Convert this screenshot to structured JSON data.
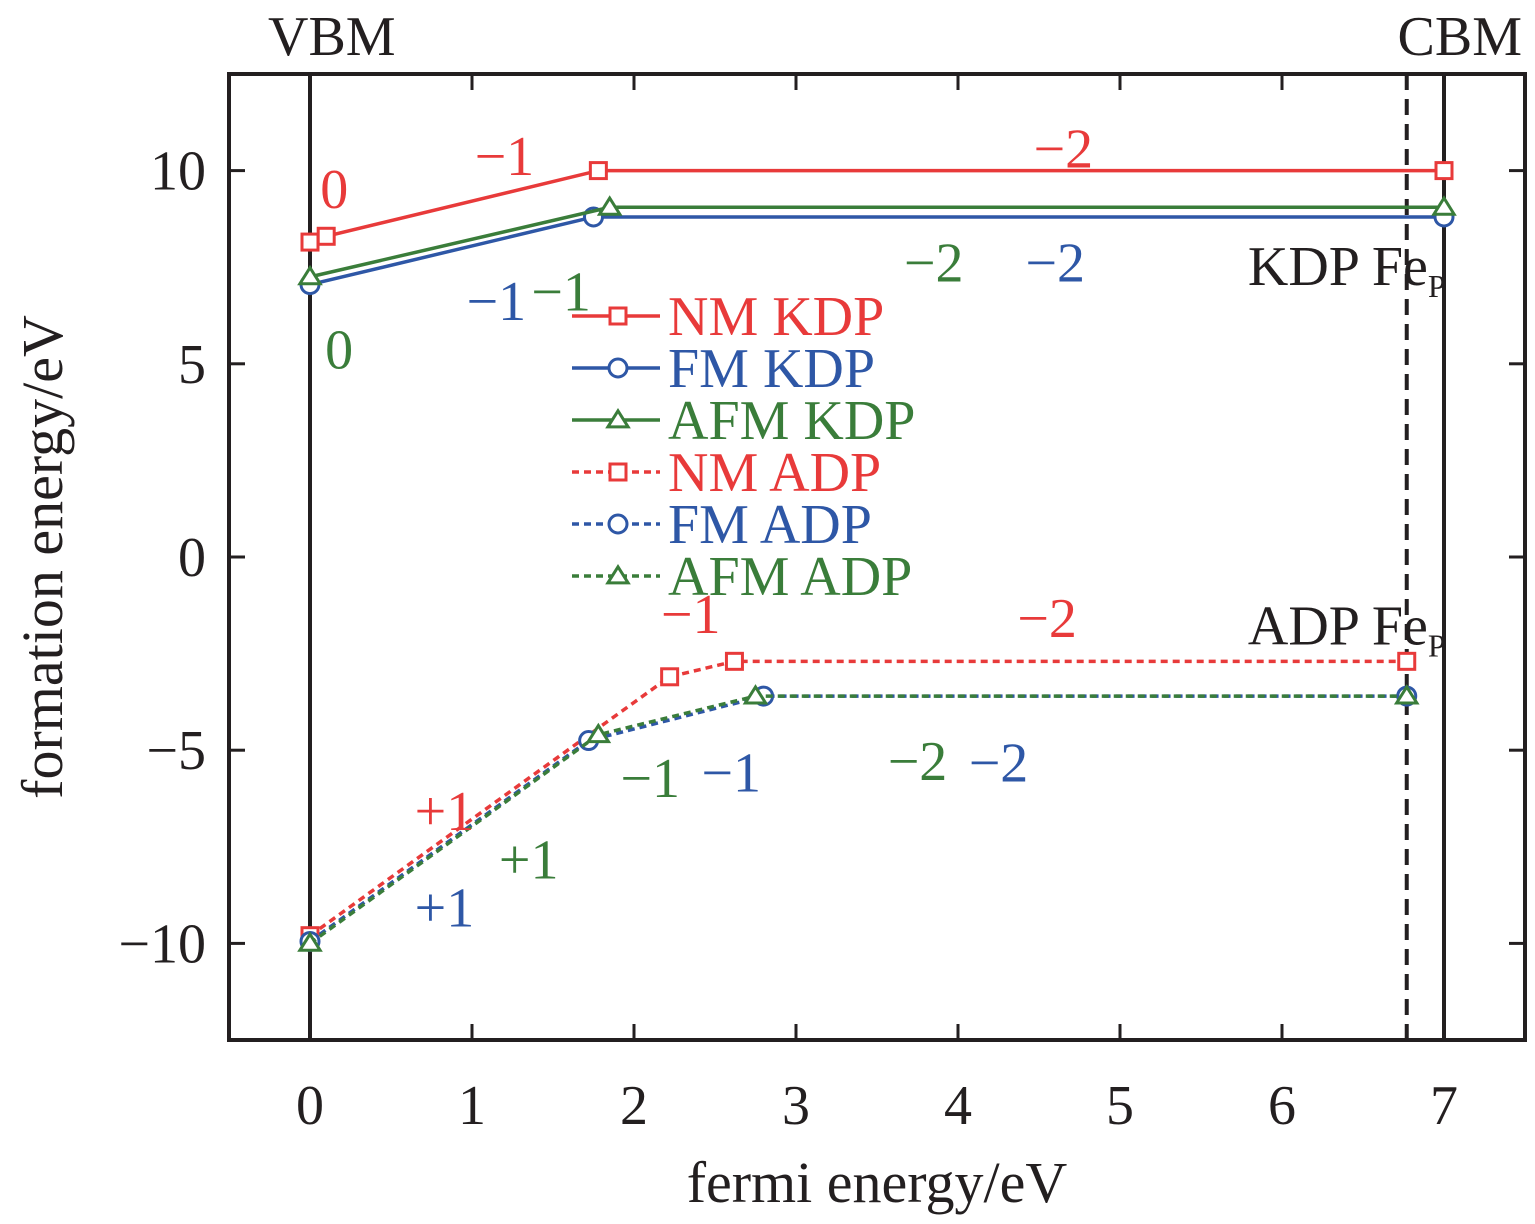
{
  "chart_data": {
    "type": "line",
    "xlabel": "fermi energy/eV",
    "ylabel": "formation energy/eV",
    "xlim": [
      -0.5,
      7.5
    ],
    "ylim": [
      -12.5,
      12.5
    ],
    "xticks": [
      0,
      1,
      2,
      3,
      4,
      5,
      6,
      7
    ],
    "yticks": [
      -10,
      -5,
      0,
      5,
      10
    ],
    "xtick_labels": [
      "0",
      "1",
      "2",
      "3",
      "4",
      "5",
      "6",
      "7"
    ],
    "ytick_labels": [
      "−10",
      "−5",
      "0",
      "5",
      "10"
    ],
    "grid": false,
    "legend_position": "center-left",
    "vlines": [
      {
        "x": 0,
        "label": "VBM",
        "style": "solid"
      },
      {
        "x": 7,
        "label": "CBM",
        "style": "solid"
      },
      {
        "x": 6.77,
        "label": "",
        "style": "dashed"
      }
    ],
    "group_labels": [
      {
        "main": "KDP Fe",
        "sub": "P",
        "x": 6.4,
        "y": 7.5
      },
      {
        "main": "ADP Fe",
        "sub": "P",
        "x": 6.4,
        "y": -1.8
      }
    ],
    "series": [
      {
        "name": "NM KDP",
        "color": "#e83a3a",
        "dash": "solid",
        "marker": "square",
        "x": [
          0,
          0.1,
          1.78,
          7.0
        ],
        "y": [
          8.15,
          8.3,
          10.0,
          10.0
        ]
      },
      {
        "name": "FM KDP",
        "color": "#2e57a6",
        "dash": "solid",
        "marker": "circle",
        "x": [
          0,
          1.75,
          7.0
        ],
        "y": [
          7.05,
          8.8,
          8.8
        ]
      },
      {
        "name": "AFM KDP",
        "color": "#3a7d3a",
        "dash": "solid",
        "marker": "triangle",
        "x": [
          0,
          1.85,
          7.0
        ],
        "y": [
          7.25,
          9.05,
          9.05
        ]
      },
      {
        "name": "NM ADP",
        "color": "#e83a3a",
        "dash": "dashed",
        "marker": "square",
        "x": [
          0,
          2.22,
          2.62,
          6.77
        ],
        "y": [
          -9.8,
          -3.1,
          -2.7,
          -2.7
        ]
      },
      {
        "name": "FM ADP",
        "color": "#2e57a6",
        "dash": "dashed",
        "marker": "circle",
        "x": [
          0,
          1.72,
          2.8,
          6.77
        ],
        "y": [
          -9.95,
          -4.75,
          -3.6,
          -3.6
        ]
      },
      {
        "name": "AFM ADP",
        "color": "#3a7d3a",
        "dash": "dashed",
        "marker": "triangle",
        "x": [
          0,
          1.78,
          2.75,
          6.77
        ],
        "y": [
          -10.0,
          -4.6,
          -3.6,
          -3.6
        ]
      }
    ],
    "annotations": [
      {
        "text": "0",
        "x": 0.15,
        "y": 9.5,
        "color": "#e83a3a"
      },
      {
        "text": "−1",
        "x": 1.2,
        "y": 10.35,
        "color": "#e83a3a"
      },
      {
        "text": "−2",
        "x": 4.65,
        "y": 10.55,
        "color": "#e83a3a"
      },
      {
        "text": "−1",
        "x": 1.15,
        "y": 6.6,
        "color": "#2e57a6"
      },
      {
        "text": "−1",
        "x": 1.55,
        "y": 6.85,
        "color": "#3a7d3a"
      },
      {
        "text": "0",
        "x": 0.18,
        "y": 5.35,
        "color": "#3a7d3a"
      },
      {
        "text": "−2",
        "x": 3.85,
        "y": 7.6,
        "color": "#3a7d3a"
      },
      {
        "text": "−2",
        "x": 4.6,
        "y": 7.6,
        "color": "#2e57a6"
      },
      {
        "text": "−1",
        "x": 2.35,
        "y": -1.5,
        "color": "#e83a3a"
      },
      {
        "text": "−2",
        "x": 4.55,
        "y": -1.6,
        "color": "#e83a3a"
      },
      {
        "text": "−1",
        "x": 2.1,
        "y": -5.75,
        "color": "#3a7d3a"
      },
      {
        "text": "−1",
        "x": 2.6,
        "y": -5.6,
        "color": "#2e57a6"
      },
      {
        "text": "−2",
        "x": 3.75,
        "y": -5.3,
        "color": "#3a7d3a"
      },
      {
        "text": "−2",
        "x": 4.25,
        "y": -5.35,
        "color": "#2e57a6"
      },
      {
        "text": "+1",
        "x": 0.83,
        "y": -6.6,
        "color": "#e83a3a"
      },
      {
        "text": "+1",
        "x": 1.35,
        "y": -7.85,
        "color": "#3a7d3a"
      },
      {
        "text": "+1",
        "x": 0.83,
        "y": -9.1,
        "color": "#2e57a6"
      }
    ]
  }
}
